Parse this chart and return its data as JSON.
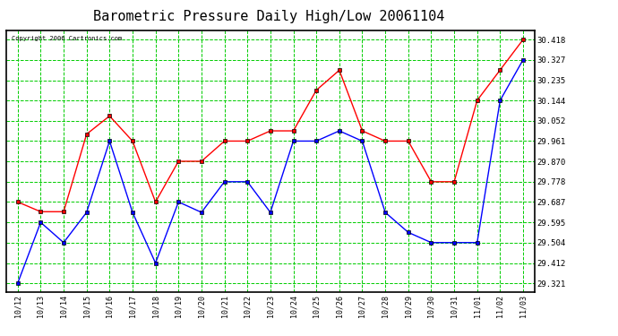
{
  "title": "Barometric Pressure Daily High/Low 20061104",
  "copyright": "Copyright 2006 Cartronics.com",
  "x_labels": [
    "10/12",
    "10/13",
    "10/14",
    "10/15",
    "10/16",
    "10/17",
    "10/18",
    "10/19",
    "10/20",
    "10/21",
    "10/22",
    "10/23",
    "10/24",
    "10/25",
    "10/26",
    "10/27",
    "10/28",
    "10/29",
    "10/30",
    "10/31",
    "11/01",
    "11/02",
    "11/03"
  ],
  "high_values": [
    29.687,
    29.643,
    29.643,
    29.992,
    30.074,
    29.961,
    29.687,
    29.87,
    29.87,
    29.961,
    29.961,
    30.007,
    30.007,
    30.19,
    30.28,
    30.007,
    29.961,
    29.961,
    29.778,
    29.778,
    30.144,
    30.281,
    30.418
  ],
  "low_values": [
    29.321,
    29.595,
    29.504,
    29.64,
    29.961,
    29.64,
    29.412,
    29.687,
    29.64,
    29.778,
    29.778,
    29.64,
    29.961,
    29.961,
    30.007,
    29.961,
    29.64,
    29.55,
    29.504,
    29.504,
    29.504,
    30.144,
    30.327
  ],
  "high_color": "#ff0000",
  "low_color": "#0000ff",
  "bg_color": "#ffffff",
  "plot_bg_color": "#ffffff",
  "grid_color": "#00cc00",
  "border_color": "#000000",
  "title_fontsize": 11,
  "ylabel_values": [
    29.321,
    29.412,
    29.504,
    29.595,
    29.687,
    29.778,
    29.87,
    29.961,
    30.052,
    30.144,
    30.235,
    30.327,
    30.418
  ],
  "ylim_min": 29.28,
  "ylim_max": 30.46
}
